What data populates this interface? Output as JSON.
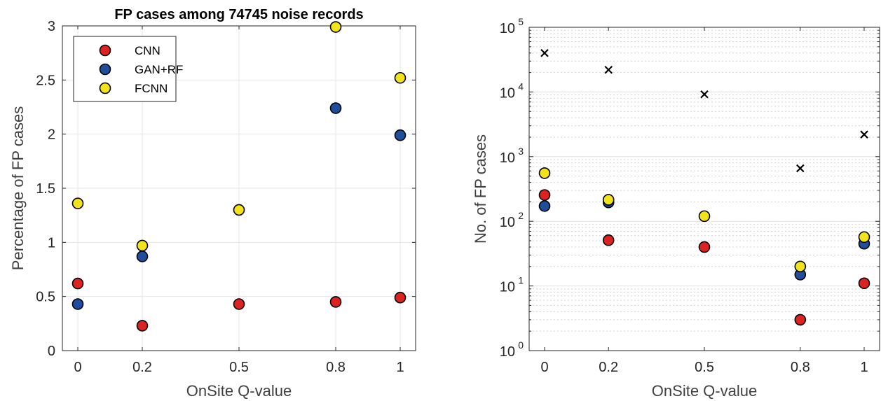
{
  "chart_data": [
    {
      "type": "scatter",
      "title": "FP cases among 74745 noise records",
      "xlabel": "OnSite Q-value",
      "ylabel": "Percentage of FP cases",
      "x": [
        0,
        0.2,
        0.5,
        0.8,
        1
      ],
      "xticks": [
        "0",
        "0.2",
        "0.5",
        "0.8",
        "1"
      ],
      "ylim": [
        0,
        3
      ],
      "yticks": [
        "0",
        "0.5",
        "1",
        "1.5",
        "2",
        "2.5",
        "3"
      ],
      "grid": true,
      "legend_position": "top-left",
      "series": [
        {
          "name": "CNN",
          "color": "#dd2222",
          "values": [
            0.62,
            0.23,
            0.43,
            0.45,
            0.49
          ]
        },
        {
          "name": "GAN+RF",
          "color": "#1f4e9c",
          "values": [
            0.43,
            0.87,
            null,
            2.24,
            1.99
          ]
        },
        {
          "name": "FCNN",
          "color": "#f2e31b",
          "values": [
            1.36,
            0.97,
            1.3,
            2.99,
            2.52
          ]
        }
      ]
    },
    {
      "type": "scatter",
      "title": "",
      "xlabel": "OnSite Q-value",
      "ylabel": "No. of FP cases",
      "x": [
        0,
        0.2,
        0.5,
        0.8,
        1
      ],
      "xticks": [
        "0",
        "0.2",
        "0.5",
        "0.8",
        "1"
      ],
      "yscale": "log",
      "ylim": [
        1,
        100000
      ],
      "yticks": [
        {
          "base": "10",
          "exp": "0"
        },
        {
          "base": "10",
          "exp": "1"
        },
        {
          "base": "10",
          "exp": "2"
        },
        {
          "base": "10",
          "exp": "3"
        },
        {
          "base": "10",
          "exp": "4"
        },
        {
          "base": "10",
          "exp": "5"
        }
      ],
      "grid": true,
      "series": [
        {
          "marker": "circle",
          "color": "#dd2222",
          "values": [
            255,
            51,
            40,
            3,
            11
          ]
        },
        {
          "marker": "circle",
          "color": "#1f4e9c",
          "values": [
            172,
            196,
            null,
            15,
            45
          ]
        },
        {
          "marker": "circle",
          "color": "#f2e31b",
          "values": [
            555,
            215,
            120,
            20,
            57
          ]
        },
        {
          "marker": "cross",
          "color": "#000000",
          "values": [
            40000,
            22000,
            9200,
            660,
            2200
          ]
        }
      ]
    }
  ]
}
